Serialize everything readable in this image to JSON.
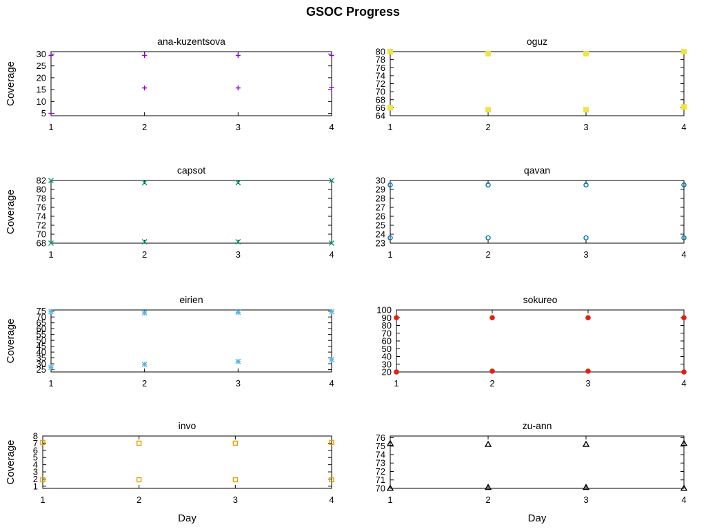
{
  "title": "GSOC Progress",
  "background": "#ffffff",
  "axis": {
    "ylabel": "Coverage",
    "xlabel": "Day"
  },
  "chart_data": [
    {
      "type": "scatter",
      "title": "ana-kuzentsova",
      "marker": "plus",
      "color": "#9400d3",
      "x": [
        1,
        2,
        3,
        4
      ],
      "xticks": [
        1,
        2,
        3,
        4
      ],
      "yticks": [
        5,
        10,
        15,
        20,
        25,
        30
      ],
      "xlim": [
        1,
        4
      ],
      "ylim": [
        4,
        31
      ],
      "series": [
        {
          "values": [
            29.4,
            29.4,
            29.4,
            29.4
          ]
        },
        {
          "values": [
            5.0,
            15.7,
            15.7,
            15.8
          ]
        }
      ],
      "show_ylabel": true,
      "show_xlabel": false
    },
    {
      "type": "scatter",
      "title": "oguz",
      "marker": "square-filled",
      "color": "#f0e442",
      "x": [
        1,
        2,
        3,
        4
      ],
      "xticks": [
        1,
        2,
        3,
        4
      ],
      "yticks": [
        64,
        66,
        68,
        70,
        72,
        74,
        76,
        78,
        80
      ],
      "xlim": [
        1,
        4
      ],
      "ylim": [
        64,
        80
      ],
      "series": [
        {
          "values": [
            80,
            79.5,
            79.5,
            80
          ]
        },
        {
          "values": [
            66,
            65.5,
            65.5,
            66.2
          ]
        }
      ],
      "show_ylabel": false,
      "show_xlabel": false
    },
    {
      "type": "scatter",
      "title": "capsot",
      "marker": "cross",
      "color": "#009e73",
      "x": [
        1,
        2,
        3,
        4
      ],
      "xticks": [
        1,
        2,
        3,
        4
      ],
      "yticks": [
        68,
        70,
        72,
        74,
        76,
        78,
        80,
        82
      ],
      "xlim": [
        1,
        4
      ],
      "ylim": [
        68,
        82
      ],
      "series": [
        {
          "values": [
            82,
            81.5,
            81.5,
            82
          ]
        },
        {
          "values": [
            68,
            68.3,
            68.3,
            68
          ]
        }
      ],
      "show_ylabel": true,
      "show_xlabel": false
    },
    {
      "type": "scatter",
      "title": "qavan",
      "marker": "circle-open",
      "color": "#0072b2",
      "x": [
        1,
        2,
        3,
        4
      ],
      "xticks": [
        1,
        2,
        3,
        4
      ],
      "yticks": [
        23,
        24,
        25,
        26,
        27,
        28,
        29,
        30
      ],
      "xlim": [
        1,
        4
      ],
      "ylim": [
        23,
        30
      ],
      "series": [
        {
          "values": [
            29.5,
            29.5,
            29.5,
            29.5
          ]
        },
        {
          "values": [
            23.6,
            23.6,
            23.6,
            23.6
          ]
        }
      ],
      "show_ylabel": false,
      "show_xlabel": false
    },
    {
      "type": "scatter",
      "title": "eirien",
      "marker": "asterisk",
      "color": "#56b4e9",
      "x": [
        1,
        2,
        3,
        4
      ],
      "xticks": [
        1,
        2,
        3,
        4
      ],
      "yticks": [
        25,
        30,
        35,
        40,
        45,
        50,
        55,
        60,
        65,
        70,
        75
      ],
      "xlim": [
        1,
        4
      ],
      "ylim": [
        23,
        76
      ],
      "series": [
        {
          "values": [
            74.5,
            73.5,
            74,
            74.5
          ]
        },
        {
          "values": [
            27,
            29.5,
            32,
            33.5
          ]
        }
      ],
      "show_ylabel": true,
      "show_xlabel": false
    },
    {
      "type": "scatter",
      "title": "sokureo",
      "marker": "circle-filled",
      "color": "#e51e10",
      "x": [
        1,
        2,
        3,
        4
      ],
      "xticks": [
        1,
        2,
        3,
        4
      ],
      "yticks": [
        20,
        30,
        40,
        50,
        60,
        70,
        80,
        90,
        100
      ],
      "xlim": [
        1,
        4
      ],
      "ylim": [
        20,
        100
      ],
      "series": [
        {
          "values": [
            90,
            90,
            90,
            90
          ]
        },
        {
          "values": [
            20,
            21,
            21,
            20
          ]
        }
      ],
      "show_ylabel": false,
      "show_xlabel": false
    },
    {
      "type": "scatter",
      "title": "invo",
      "marker": "square-open",
      "color": "#e69f00",
      "x": [
        1,
        2,
        3,
        4
      ],
      "xticks": [
        1,
        2,
        3,
        4
      ],
      "yticks": [
        1,
        2,
        3,
        4,
        5,
        6,
        7,
        8
      ],
      "xlim": [
        1,
        4
      ],
      "ylim": [
        0.7,
        8
      ],
      "series": [
        {
          "values": [
            7.1,
            7,
            7,
            7.1
          ]
        },
        {
          "values": [
            1.9,
            1.9,
            1.9,
            1.9
          ]
        }
      ],
      "show_ylabel": true,
      "show_xlabel": true
    },
    {
      "type": "scatter",
      "title": "zu-ann",
      "marker": "triangle-open",
      "color": "#000000",
      "x": [
        1,
        2,
        3,
        4
      ],
      "xticks": [
        1,
        2,
        3,
        4
      ],
      "yticks": [
        70,
        71,
        72,
        73,
        74,
        75,
        76
      ],
      "xlim": [
        1,
        4
      ],
      "ylim": [
        70,
        76.2
      ],
      "series": [
        {
          "values": [
            75.3,
            75.2,
            75.2,
            75.3
          ]
        },
        {
          "values": [
            70,
            70.1,
            70.1,
            70
          ]
        }
      ],
      "show_ylabel": false,
      "show_xlabel": true
    }
  ]
}
